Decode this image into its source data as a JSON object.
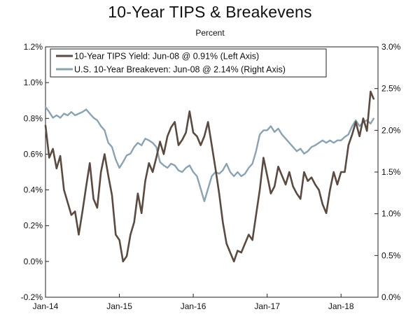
{
  "chart_data": {
    "type": "line",
    "title": "10-Year TIPS & Breakevens",
    "subtitle": "Percent",
    "x_tick_labels": [
      "Jan-14",
      "Jan-15",
      "Jan-16",
      "Jan-17",
      "Jan-18"
    ],
    "x_ticks": [
      2014.0,
      2015.0,
      2016.0,
      2017.0,
      2018.0
    ],
    "x_range": [
      2014.0,
      2018.5
    ],
    "left_axis": {
      "ylim": [
        -0.2,
        1.2
      ],
      "ticks": [
        -0.2,
        0.0,
        0.2,
        0.4,
        0.6,
        0.8,
        1.0,
        1.2
      ],
      "tick_labels": [
        "-0.2%",
        "0.0%",
        "0.2%",
        "0.4%",
        "0.6%",
        "0.8%",
        "1.0%",
        "1.2%"
      ]
    },
    "right_axis": {
      "ylim": [
        0.0,
        3.0
      ],
      "ticks": [
        0.0,
        0.5,
        1.0,
        1.5,
        2.0,
        2.5,
        3.0
      ],
      "tick_labels": [
        "0.0%",
        "0.5%",
        "1.0%",
        "1.5%",
        "2.0%",
        "2.5%",
        "3.0%"
      ]
    },
    "legend_position": "top-left",
    "series": [
      {
        "name": "10-Year TIPS Yield: Jun-08 @ 0.91% (Left Axis)",
        "axis": "left",
        "color": "#5a4a3f",
        "x": [
          2014.0,
          2014.05,
          2014.1,
          2014.15,
          2014.2,
          2014.25,
          2014.3,
          2014.35,
          2014.4,
          2014.45,
          2014.5,
          2014.55,
          2014.6,
          2014.65,
          2014.7,
          2014.75,
          2014.8,
          2014.85,
          2014.9,
          2014.95,
          2015.0,
          2015.05,
          2015.1,
          2015.15,
          2015.2,
          2015.25,
          2015.3,
          2015.35,
          2015.4,
          2015.45,
          2015.5,
          2015.55,
          2015.6,
          2015.65,
          2015.7,
          2015.75,
          2015.8,
          2015.85,
          2015.9,
          2015.95,
          2016.0,
          2016.05,
          2016.1,
          2016.15,
          2016.2,
          2016.25,
          2016.3,
          2016.35,
          2016.4,
          2016.45,
          2016.5,
          2016.55,
          2016.6,
          2016.65,
          2016.7,
          2016.75,
          2016.8,
          2016.85,
          2016.9,
          2016.95,
          2017.0,
          2017.05,
          2017.1,
          2017.15,
          2017.2,
          2017.25,
          2017.3,
          2017.35,
          2017.4,
          2017.45,
          2017.5,
          2017.55,
          2017.6,
          2017.65,
          2017.7,
          2017.75,
          2017.8,
          2017.85,
          2017.9,
          2017.95,
          2018.0,
          2018.05,
          2018.1,
          2018.15,
          2018.2,
          2018.25,
          2018.3,
          2018.35,
          2018.4,
          2018.44
        ],
        "values": [
          0.76,
          0.58,
          0.63,
          0.52,
          0.59,
          0.4,
          0.33,
          0.26,
          0.28,
          0.15,
          0.28,
          0.42,
          0.55,
          0.35,
          0.3,
          0.5,
          0.6,
          0.48,
          0.37,
          0.15,
          0.12,
          0.0,
          0.03,
          0.15,
          0.22,
          0.38,
          0.27,
          0.45,
          0.55,
          0.5,
          0.58,
          0.67,
          0.6,
          0.7,
          0.75,
          0.78,
          0.65,
          0.68,
          0.72,
          0.84,
          0.72,
          0.7,
          0.65,
          0.7,
          0.78,
          0.65,
          0.52,
          0.38,
          0.22,
          0.1,
          0.05,
          0.0,
          0.06,
          0.05,
          0.1,
          0.15,
          0.12,
          0.26,
          0.4,
          0.58,
          0.48,
          0.38,
          0.42,
          0.53,
          0.48,
          0.43,
          0.5,
          0.42,
          0.38,
          0.35,
          0.5,
          0.45,
          0.47,
          0.43,
          0.4,
          0.32,
          0.27,
          0.4,
          0.5,
          0.43,
          0.5,
          0.5,
          0.65,
          0.71,
          0.78,
          0.7,
          0.8,
          0.73,
          0.95,
          0.91
        ]
      },
      {
        "name": "U.S. 10-Year Breakeven: Jun-08 @ 2.14% (Right Axis)",
        "axis": "right",
        "color": "#8aa3b3",
        "x": [
          2014.0,
          2014.05,
          2014.1,
          2014.15,
          2014.2,
          2014.25,
          2014.3,
          2014.35,
          2014.4,
          2014.45,
          2014.5,
          2014.55,
          2014.6,
          2014.65,
          2014.7,
          2014.75,
          2014.8,
          2014.85,
          2014.9,
          2014.95,
          2015.0,
          2015.05,
          2015.1,
          2015.15,
          2015.2,
          2015.25,
          2015.3,
          2015.35,
          2015.4,
          2015.45,
          2015.5,
          2015.55,
          2015.6,
          2015.65,
          2015.7,
          2015.75,
          2015.8,
          2015.85,
          2015.9,
          2015.95,
          2016.0,
          2016.05,
          2016.1,
          2016.15,
          2016.2,
          2016.25,
          2016.3,
          2016.35,
          2016.4,
          2016.45,
          2016.5,
          2016.55,
          2016.6,
          2016.65,
          2016.7,
          2016.75,
          2016.8,
          2016.85,
          2016.9,
          2016.95,
          2017.0,
          2017.05,
          2017.1,
          2017.15,
          2017.2,
          2017.25,
          2017.3,
          2017.35,
          2017.4,
          2017.45,
          2017.5,
          2017.55,
          2017.6,
          2017.65,
          2017.7,
          2017.75,
          2017.8,
          2017.85,
          2017.9,
          2017.95,
          2018.0,
          2018.05,
          2018.1,
          2018.15,
          2018.2,
          2018.25,
          2018.3,
          2018.35,
          2018.4,
          2018.44
        ],
        "values": [
          2.28,
          2.22,
          2.15,
          2.18,
          2.15,
          2.2,
          2.18,
          2.22,
          2.18,
          2.2,
          2.22,
          2.25,
          2.2,
          2.15,
          2.12,
          2.05,
          2.0,
          1.85,
          1.8,
          1.65,
          1.55,
          1.62,
          1.7,
          1.72,
          1.8,
          1.85,
          1.82,
          1.9,
          1.88,
          1.85,
          1.8,
          1.62,
          1.58,
          1.55,
          1.6,
          1.58,
          1.52,
          1.5,
          1.55,
          1.58,
          1.5,
          1.45,
          1.3,
          1.15,
          1.3,
          1.45,
          1.5,
          1.48,
          1.52,
          1.6,
          1.5,
          1.45,
          1.5,
          1.45,
          1.48,
          1.55,
          1.6,
          1.75,
          1.95,
          2.0,
          2.0,
          2.05,
          1.98,
          2.02,
          1.95,
          1.9,
          1.85,
          1.8,
          1.75,
          1.78,
          1.72,
          1.75,
          1.8,
          1.82,
          1.85,
          1.88,
          1.85,
          1.88,
          1.85,
          1.88,
          1.88,
          1.92,
          1.95,
          2.05,
          2.12,
          2.05,
          2.1,
          2.12,
          2.08,
          2.14
        ]
      }
    ]
  }
}
